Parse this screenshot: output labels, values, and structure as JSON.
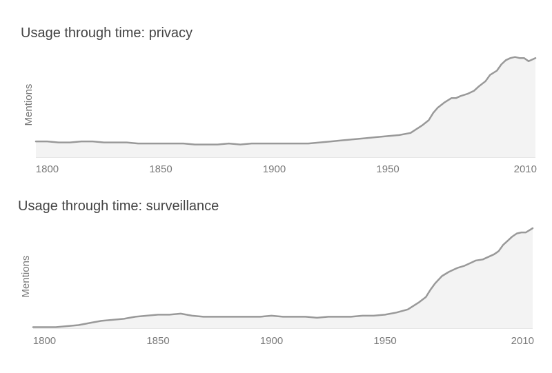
{
  "chart_data": [
    {
      "type": "area",
      "title": "Usage through time: privacy",
      "xlabel": "",
      "ylabel": "Mentions",
      "xlim": [
        1795,
        2015
      ],
      "ylim": [
        0,
        100
      ],
      "xticks": [
        "1800",
        "1850",
        "1900",
        "1950",
        "2010"
      ],
      "grid": false,
      "line_color": "#999999",
      "fill_color": "#f3f3f3",
      "x": [
        1795,
        1800,
        1805,
        1810,
        1815,
        1820,
        1825,
        1830,
        1835,
        1840,
        1845,
        1850,
        1855,
        1860,
        1865,
        1870,
        1875,
        1880,
        1885,
        1890,
        1895,
        1900,
        1905,
        1910,
        1915,
        1920,
        1925,
        1930,
        1935,
        1940,
        1945,
        1950,
        1955,
        1960,
        1965,
        1968,
        1970,
        1972,
        1975,
        1978,
        1980,
        1982,
        1985,
        1988,
        1990,
        1993,
        1995,
        1998,
        2000,
        2002,
        2004,
        2006,
        2008,
        2010,
        2012,
        2015
      ],
      "values": [
        15,
        15,
        14,
        14,
        15,
        15,
        14,
        14,
        14,
        13,
        13,
        13,
        13,
        13,
        12,
        12,
        12,
        13,
        12,
        13,
        13,
        13,
        13,
        13,
        13,
        14,
        15,
        16,
        17,
        18,
        19,
        20,
        21,
        23,
        30,
        35,
        42,
        47,
        52,
        56,
        56,
        58,
        60,
        63,
        67,
        72,
        78,
        82,
        88,
        92,
        94,
        95,
        94,
        94,
        91,
        94
      ]
    },
    {
      "type": "area",
      "title": "Usage through time: surveillance",
      "xlabel": "",
      "ylabel": "Mentions",
      "xlim": [
        1795,
        2015
      ],
      "ylim": [
        0,
        100
      ],
      "xticks": [
        "1800",
        "1850",
        "1900",
        "1950",
        "2010"
      ],
      "grid": false,
      "line_color": "#999999",
      "fill_color": "#f3f3f3",
      "x": [
        1795,
        1800,
        1805,
        1810,
        1815,
        1820,
        1825,
        1830,
        1835,
        1840,
        1845,
        1850,
        1855,
        1860,
        1865,
        1870,
        1875,
        1880,
        1885,
        1890,
        1895,
        1900,
        1905,
        1910,
        1915,
        1920,
        1925,
        1930,
        1935,
        1940,
        1945,
        1950,
        1955,
        1960,
        1965,
        1968,
        1970,
        1972,
        1975,
        1978,
        1980,
        1982,
        1985,
        1988,
        1990,
        1993,
        1995,
        1998,
        2000,
        2002,
        2004,
        2006,
        2008,
        2010,
        2012,
        2015
      ],
      "values": [
        1,
        1,
        1,
        2,
        3,
        5,
        7,
        8,
        9,
        11,
        12,
        13,
        13,
        14,
        12,
        11,
        11,
        11,
        11,
        11,
        11,
        12,
        11,
        11,
        11,
        10,
        11,
        11,
        11,
        12,
        12,
        13,
        15,
        18,
        25,
        30,
        37,
        43,
        50,
        54,
        56,
        58,
        60,
        63,
        65,
        66,
        68,
        71,
        74,
        80,
        84,
        88,
        91,
        92,
        92,
        96
      ]
    }
  ]
}
